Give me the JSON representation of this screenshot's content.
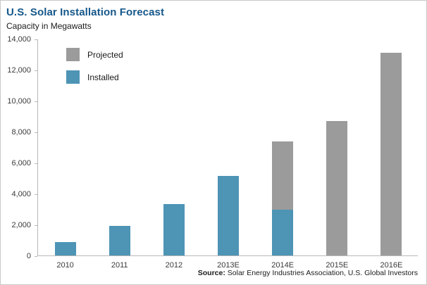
{
  "header": {
    "title": "U.S. Solar Installation Forecast",
    "subtitle": "Capacity in Megawatts"
  },
  "colors": {
    "title": "#15578a",
    "installed": "#4d94b5",
    "projected": "#9b9b9b",
    "axis": "#b8b8b8"
  },
  "legend": {
    "items": [
      {
        "label": "Projected",
        "swatch": "projected"
      },
      {
        "label": "Installed",
        "swatch": "installed"
      }
    ]
  },
  "footer": {
    "source_label": "Source:",
    "source_text": " Solar Energy Industries Association, U.S. Global Investors"
  },
  "chart_data": {
    "type": "bar",
    "stacked": true,
    "title": "U.S. Solar Installation Forecast",
    "ylabel": "Capacity in Megawatts",
    "categories": [
      "2010",
      "2011",
      "2012",
      "2013E",
      "2014E",
      "2015E",
      "2016E"
    ],
    "series": [
      {
        "name": "Installed",
        "color": "#4d94b5",
        "values": [
          880,
          1900,
          3350,
          5150,
          2970,
          0,
          0
        ]
      },
      {
        "name": "Projected",
        "color": "#9b9b9b",
        "values": [
          0,
          0,
          0,
          0,
          4430,
          8720,
          13150
        ]
      }
    ],
    "ylim": [
      0,
      14000
    ],
    "yticks": [
      {
        "value": 0,
        "label": "0"
      },
      {
        "value": 2000,
        "label": "2,000"
      },
      {
        "value": 4000,
        "label": "4,000"
      },
      {
        "value": 6000,
        "label": "6,000"
      },
      {
        "value": 8000,
        "label": "8,000"
      },
      {
        "value": 10000,
        "label": "10,000"
      },
      {
        "value": 12000,
        "label": "12,000"
      },
      {
        "value": 14000,
        "label": "14,000"
      }
    ],
    "grid": false,
    "legend_position": "top-left-inside",
    "source": "Source: Solar Energy Industries Association, U.S. Global Investors"
  }
}
